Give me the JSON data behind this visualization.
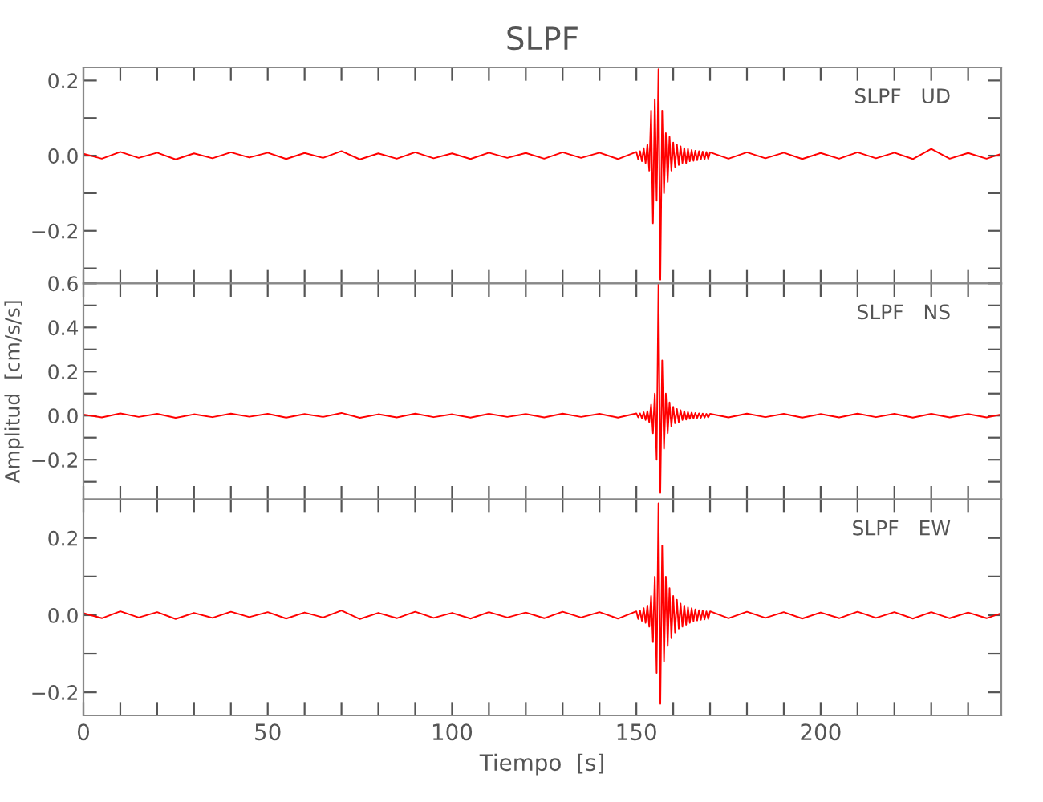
{
  "chart_data": [
    {
      "type": "line",
      "title": "SLPF",
      "annotations": [
        "SLPF   UD"
      ],
      "x": [
        0,
        5,
        10,
        15,
        20,
        25,
        30,
        35,
        40,
        45,
        50,
        55,
        60,
        65,
        70,
        75,
        80,
        85,
        90,
        95,
        100,
        105,
        110,
        115,
        120,
        125,
        130,
        135,
        140,
        145,
        150,
        150.5,
        151,
        151.5,
        152,
        152.5,
        153,
        153.5,
        154,
        154.5,
        155,
        155.5,
        156,
        156.5,
        157,
        157.5,
        158,
        158.5,
        159,
        159.5,
        160,
        160.5,
        161,
        161.5,
        162,
        162.5,
        163,
        163.5,
        164,
        164.5,
        165,
        165.5,
        166,
        166.5,
        167,
        167.5,
        168,
        168.5,
        169,
        169.5,
        170,
        175,
        180,
        185,
        190,
        195,
        200,
        205,
        210,
        215,
        220,
        225,
        230,
        235,
        240,
        245,
        249
      ],
      "series": [
        {
          "color": "#ff0000",
          "values": [
            0.005,
            -0.008,
            0.01,
            -0.006,
            0.008,
            -0.01,
            0.006,
            -0.007,
            0.009,
            -0.005,
            0.008,
            -0.009,
            0.007,
            -0.006,
            0.012,
            -0.01,
            0.006,
            -0.008,
            0.009,
            -0.007,
            0.006,
            -0.009,
            0.008,
            -0.006,
            0.007,
            -0.008,
            0.009,
            -0.006,
            0.008,
            -0.009,
            0.01,
            -0.01,
            0.012,
            -0.015,
            0.02,
            -0.02,
            0.03,
            -0.04,
            0.12,
            -0.18,
            0.15,
            -0.12,
            0.23,
            -0.33,
            0.12,
            -0.1,
            0.06,
            -0.07,
            0.05,
            -0.04,
            0.035,
            -0.03,
            0.03,
            -0.025,
            0.025,
            -0.02,
            0.02,
            -0.02,
            0.018,
            -0.015,
            0.015,
            -0.014,
            0.013,
            -0.012,
            0.012,
            -0.01,
            0.011,
            -0.01,
            0.01,
            -0.009,
            0.009,
            -0.008,
            0.009,
            -0.007,
            0.008,
            -0.009,
            0.007,
            -0.008,
            0.009,
            -0.007,
            0.008,
            -0.009,
            0.018,
            -0.008,
            0.007,
            -0.008,
            0.005
          ]
        }
      ],
      "xlim": [
        0,
        249
      ],
      "xticks": [
        {
          "value": 0,
          "label": null
        },
        {
          "value": 10,
          "label": null
        },
        {
          "value": 20,
          "label": null
        },
        {
          "value": 30,
          "label": null
        },
        {
          "value": 40,
          "label": null
        },
        {
          "value": 50,
          "label": null
        },
        {
          "value": 60,
          "label": null
        },
        {
          "value": 70,
          "label": null
        },
        {
          "value": 80,
          "label": null
        },
        {
          "value": 90,
          "label": null
        },
        {
          "value": 100,
          "label": null
        },
        {
          "value": 110,
          "label": null
        },
        {
          "value": 120,
          "label": null
        },
        {
          "value": 130,
          "label": null
        },
        {
          "value": 140,
          "label": null
        },
        {
          "value": 150,
          "label": null
        },
        {
          "value": 160,
          "label": null
        },
        {
          "value": 170,
          "label": null
        },
        {
          "value": 180,
          "label": null
        },
        {
          "value": 190,
          "label": null
        },
        {
          "value": 200,
          "label": null
        },
        {
          "value": 210,
          "label": null
        },
        {
          "value": 220,
          "label": null
        },
        {
          "value": 230,
          "label": null
        },
        {
          "value": 240,
          "label": null
        }
      ],
      "ylim": [
        -0.34,
        0.235
      ],
      "yticks": [
        {
          "value": -0.3,
          "label": null
        },
        {
          "value": -0.2,
          "label": "−0.2"
        },
        {
          "value": -0.1,
          "label": null
        },
        {
          "value": 0.0,
          "label": "0.0"
        },
        {
          "value": 0.1,
          "label": null
        },
        {
          "value": 0.2,
          "label": "0.2"
        }
      ],
      "tick_labels": "y",
      "grid": false,
      "legend": false
    },
    {
      "type": "line",
      "ylabel": "Amplitud  [cm/s/s]",
      "annotations": [
        "SLPF   NS"
      ],
      "x": [
        0,
        5,
        10,
        15,
        20,
        25,
        30,
        35,
        40,
        45,
        50,
        55,
        60,
        65,
        70,
        75,
        80,
        85,
        90,
        95,
        100,
        105,
        110,
        115,
        120,
        125,
        130,
        135,
        140,
        145,
        150,
        150.5,
        151,
        151.5,
        152,
        152.5,
        153,
        153.5,
        154,
        154.5,
        155,
        155.5,
        156,
        156.5,
        157,
        157.5,
        158,
        158.5,
        159,
        159.5,
        160,
        160.5,
        161,
        161.5,
        162,
        162.5,
        163,
        163.5,
        164,
        164.5,
        165,
        165.5,
        166,
        166.5,
        167,
        167.5,
        168,
        168.5,
        169,
        169.5,
        170,
        175,
        180,
        185,
        190,
        195,
        200,
        205,
        210,
        215,
        220,
        225,
        230,
        235,
        240,
        245,
        249
      ],
      "series": [
        {
          "color": "#ff0000",
          "values": [
            0.005,
            -0.008,
            0.01,
            -0.006,
            0.008,
            -0.01,
            0.006,
            -0.007,
            0.009,
            -0.005,
            0.008,
            -0.009,
            0.007,
            -0.006,
            0.012,
            -0.01,
            0.006,
            -0.008,
            0.009,
            -0.007,
            0.006,
            -0.009,
            0.008,
            -0.006,
            0.007,
            -0.008,
            0.009,
            -0.006,
            0.008,
            -0.009,
            0.01,
            -0.008,
            0.01,
            -0.012,
            0.015,
            -0.02,
            0.02,
            -0.03,
            0.05,
            -0.08,
            0.1,
            -0.2,
            0.6,
            -0.35,
            0.25,
            -0.15,
            0.1,
            -0.08,
            0.06,
            -0.05,
            0.04,
            -0.035,
            0.03,
            -0.03,
            0.025,
            -0.02,
            0.02,
            -0.018,
            0.016,
            -0.015,
            0.014,
            -0.013,
            0.012,
            -0.011,
            0.01,
            -0.01,
            0.009,
            -0.009,
            0.008,
            -0.008,
            0.008,
            -0.008,
            0.009,
            -0.007,
            0.008,
            -0.009,
            0.007,
            -0.008,
            0.009,
            -0.007,
            0.008,
            -0.009,
            0.008,
            -0.008,
            0.007,
            -0.008,
            0.005
          ]
        }
      ],
      "xlim": [
        0,
        249
      ],
      "xticks": [
        {
          "value": 0,
          "label": null
        },
        {
          "value": 10,
          "label": null
        },
        {
          "value": 20,
          "label": null
        },
        {
          "value": 30,
          "label": null
        },
        {
          "value": 40,
          "label": null
        },
        {
          "value": 50,
          "label": null
        },
        {
          "value": 60,
          "label": null
        },
        {
          "value": 70,
          "label": null
        },
        {
          "value": 80,
          "label": null
        },
        {
          "value": 90,
          "label": null
        },
        {
          "value": 100,
          "label": null
        },
        {
          "value": 110,
          "label": null
        },
        {
          "value": 120,
          "label": null
        },
        {
          "value": 130,
          "label": null
        },
        {
          "value": 140,
          "label": null
        },
        {
          "value": 150,
          "label": null
        },
        {
          "value": 160,
          "label": null
        },
        {
          "value": 170,
          "label": null
        },
        {
          "value": 180,
          "label": null
        },
        {
          "value": 190,
          "label": null
        },
        {
          "value": 200,
          "label": null
        },
        {
          "value": 210,
          "label": null
        },
        {
          "value": 220,
          "label": null
        },
        {
          "value": 230,
          "label": null
        },
        {
          "value": 240,
          "label": null
        }
      ],
      "ylim": [
        -0.38,
        0.6
      ],
      "yticks": [
        {
          "value": -0.3,
          "label": null
        },
        {
          "value": -0.2,
          "label": "−0.2"
        },
        {
          "value": -0.1,
          "label": null
        },
        {
          "value": 0.0,
          "label": "0.0"
        },
        {
          "value": 0.1,
          "label": null
        },
        {
          "value": 0.2,
          "label": "0.2"
        },
        {
          "value": 0.3,
          "label": null
        },
        {
          "value": 0.4,
          "label": "0.4"
        },
        {
          "value": 0.5,
          "label": null
        },
        {
          "value": 0.6,
          "label": "0.6"
        }
      ],
      "tick_labels": "y",
      "grid": false,
      "legend": false
    },
    {
      "type": "line",
      "xlabel": "Tiempo  [s]",
      "annotations": [
        "SLPF   EW"
      ],
      "x": [
        0,
        5,
        10,
        15,
        20,
        25,
        30,
        35,
        40,
        45,
        50,
        55,
        60,
        65,
        70,
        75,
        80,
        85,
        90,
        95,
        100,
        105,
        110,
        115,
        120,
        125,
        130,
        135,
        140,
        145,
        150,
        150.5,
        151,
        151.5,
        152,
        152.5,
        153,
        153.5,
        154,
        154.5,
        155,
        155.5,
        156,
        156.5,
        157,
        157.5,
        158,
        158.5,
        159,
        159.5,
        160,
        160.5,
        161,
        161.5,
        162,
        162.5,
        163,
        163.5,
        164,
        164.5,
        165,
        165.5,
        166,
        166.5,
        167,
        167.5,
        168,
        168.5,
        169,
        169.5,
        170,
        175,
        180,
        185,
        190,
        195,
        200,
        205,
        210,
        215,
        220,
        225,
        230,
        235,
        240,
        245,
        249
      ],
      "series": [
        {
          "color": "#ff0000",
          "values": [
            0.005,
            -0.008,
            0.01,
            -0.006,
            0.008,
            -0.01,
            0.006,
            -0.007,
            0.009,
            -0.005,
            0.008,
            -0.009,
            0.007,
            -0.006,
            0.012,
            -0.01,
            0.006,
            -0.008,
            0.009,
            -0.007,
            0.006,
            -0.009,
            0.008,
            -0.006,
            0.007,
            -0.008,
            0.009,
            -0.006,
            0.008,
            -0.009,
            0.01,
            -0.01,
            0.012,
            -0.015,
            0.018,
            -0.02,
            0.025,
            -0.03,
            0.05,
            -0.07,
            0.1,
            -0.15,
            0.29,
            -0.23,
            0.18,
            -0.12,
            0.1,
            -0.08,
            0.07,
            -0.06,
            0.05,
            -0.045,
            0.04,
            -0.035,
            0.03,
            -0.03,
            0.025,
            -0.025,
            0.02,
            -0.02,
            0.018,
            -0.016,
            0.015,
            -0.014,
            0.013,
            -0.012,
            0.012,
            -0.011,
            0.01,
            -0.01,
            0.01,
            -0.008,
            0.009,
            -0.007,
            0.008,
            -0.009,
            0.007,
            -0.008,
            0.009,
            -0.007,
            0.008,
            -0.009,
            0.008,
            -0.008,
            0.007,
            -0.008,
            0.005
          ]
        }
      ],
      "xlim": [
        0,
        249
      ],
      "xticks": [
        {
          "value": 0,
          "label": "0"
        },
        {
          "value": 10,
          "label": null
        },
        {
          "value": 20,
          "label": null
        },
        {
          "value": 30,
          "label": null
        },
        {
          "value": 40,
          "label": null
        },
        {
          "value": 50,
          "label": "50"
        },
        {
          "value": 60,
          "label": null
        },
        {
          "value": 70,
          "label": null
        },
        {
          "value": 80,
          "label": null
        },
        {
          "value": 90,
          "label": null
        },
        {
          "value": 100,
          "label": "100"
        },
        {
          "value": 110,
          "label": null
        },
        {
          "value": 120,
          "label": null
        },
        {
          "value": 130,
          "label": null
        },
        {
          "value": 140,
          "label": null
        },
        {
          "value": 150,
          "label": "150"
        },
        {
          "value": 160,
          "label": null
        },
        {
          "value": 170,
          "label": null
        },
        {
          "value": 180,
          "label": null
        },
        {
          "value": 190,
          "label": null
        },
        {
          "value": 200,
          "label": "200"
        },
        {
          "value": 210,
          "label": null
        },
        {
          "value": 220,
          "label": null
        },
        {
          "value": 230,
          "label": null
        },
        {
          "value": 240,
          "label": null
        }
      ],
      "ylim": [
        -0.26,
        0.3
      ],
      "yticks": [
        {
          "value": -0.2,
          "label": "−0.2"
        },
        {
          "value": -0.1,
          "label": null
        },
        {
          "value": 0.0,
          "label": "0.0"
        },
        {
          "value": 0.1,
          "label": null
        },
        {
          "value": 0.2,
          "label": "0.2"
        }
      ],
      "grid": false,
      "legend": false
    }
  ]
}
